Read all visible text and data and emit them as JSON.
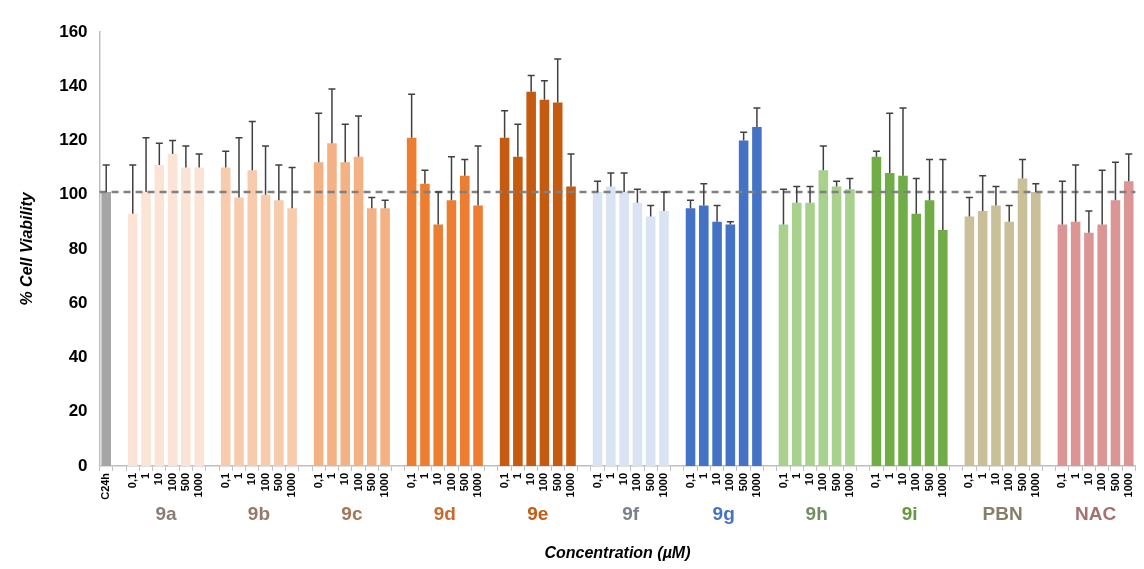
{
  "chart_data": {
    "type": "bar",
    "categories": [
      "C24h",
      null,
      "0,1",
      "1",
      "10",
      "100",
      "500",
      "1000",
      null,
      "0,1",
      "1",
      "10",
      "100",
      "500",
      "1000",
      null,
      "0,1",
      "1",
      "10",
      "100",
      "500",
      "1000",
      null,
      "0,1",
      "1",
      "10",
      "100",
      "500",
      "1000",
      null,
      "0,1",
      "1",
      "10",
      "100",
      "500",
      "1000",
      null,
      "0,1",
      "1",
      "10",
      "100",
      "500",
      "1000",
      null,
      "0,1",
      "1",
      "10",
      "100",
      "500",
      "1000",
      null,
      "0,1",
      "1",
      "10",
      "100",
      "500",
      "1000",
      null,
      "0,1",
      "1",
      "10",
      "100",
      "500",
      "1000",
      null,
      "0,1",
      "1",
      "10",
      "100",
      "500",
      "1000",
      null,
      "0,1",
      "1",
      "10",
      "100",
      "500",
      "1000"
    ],
    "series": [
      {
        "color": "#a6a6a6",
        "values": [
          101,
          null,
          null,
          null,
          null,
          null,
          null,
          null,
          null,
          null,
          null,
          null,
          null,
          null,
          null,
          null,
          null,
          null,
          null,
          null,
          null,
          null,
          null,
          null,
          null,
          null,
          null,
          null,
          null,
          null,
          null,
          null,
          null,
          null,
          null,
          null,
          null,
          null,
          null,
          null,
          null,
          null,
          null,
          null,
          null,
          null,
          null,
          null,
          null,
          null,
          null,
          null,
          null,
          null,
          null,
          null,
          null,
          null,
          null,
          null,
          null,
          null,
          null,
          null,
          null,
          null,
          null,
          null,
          null,
          null,
          null,
          null,
          null,
          null,
          null,
          null,
          null,
          null
        ],
        "errors": [
          [
            101,
            111
          ],
          null,
          null,
          null,
          null,
          null,
          null,
          null,
          null,
          null,
          null,
          null,
          null,
          null,
          null,
          null,
          null,
          null,
          null,
          null,
          null,
          null,
          null,
          null,
          null,
          null,
          null,
          null,
          null,
          null,
          null,
          null,
          null,
          null,
          null,
          null,
          null,
          null,
          null,
          null,
          null,
          null,
          null,
          null,
          null,
          null,
          null,
          null,
          null,
          null,
          null,
          null,
          null,
          null,
          null,
          null,
          null,
          null,
          null,
          null,
          null,
          null,
          null,
          null,
          null,
          null,
          null,
          null,
          null,
          null,
          null,
          null,
          null,
          null,
          null,
          null,
          null,
          null
        ]
      },
      {
        "name": "9a",
        "color": "#fbe3d6",
        "values": [
          null,
          null,
          93,
          101,
          111,
          115,
          110,
          110,
          null,
          null,
          null,
          null,
          null,
          null,
          null,
          null,
          null,
          null,
          null,
          null,
          null,
          null,
          null,
          null,
          null,
          null,
          null,
          null,
          null,
          null,
          null,
          null,
          null,
          null,
          null,
          null,
          null,
          null,
          null,
          null,
          null,
          null,
          null,
          null,
          null,
          null,
          null,
          null,
          null,
          null,
          null,
          null,
          null,
          null,
          null,
          null,
          null,
          null,
          null,
          null,
          null,
          null,
          null,
          null,
          null,
          null,
          null,
          null,
          null,
          null,
          null,
          null,
          null,
          null,
          null,
          null,
          null,
          null
        ],
        "errors": [
          null,
          null,
          [
            93,
            111
          ],
          [
            101,
            121
          ],
          [
            111,
            119
          ],
          [
            115,
            120
          ],
          [
            110,
            118
          ],
          [
            110,
            115
          ],
          null,
          null,
          null,
          null,
          null,
          null,
          null,
          null,
          null,
          null,
          null,
          null,
          null,
          null,
          null,
          null,
          null,
          null,
          null,
          null,
          null,
          null,
          null,
          null,
          null,
          null,
          null,
          null,
          null,
          null,
          null,
          null,
          null,
          null,
          null,
          null,
          null,
          null,
          null,
          null,
          null,
          null,
          null,
          null,
          null,
          null,
          null,
          null,
          null,
          null,
          null,
          null,
          null,
          null,
          null,
          null,
          null,
          null,
          null,
          null,
          null,
          null,
          null,
          null,
          null,
          null,
          null,
          null,
          null,
          null
        ]
      },
      {
        "name": "9b",
        "color": "#f8cbad",
        "values": [
          null,
          null,
          null,
          null,
          null,
          null,
          null,
          null,
          null,
          110,
          99,
          109,
          100,
          98,
          95,
          null,
          null,
          null,
          null,
          null,
          null,
          null,
          null,
          null,
          null,
          null,
          null,
          null,
          null,
          null,
          null,
          null,
          null,
          null,
          null,
          null,
          null,
          null,
          null,
          null,
          null,
          null,
          null,
          null,
          null,
          null,
          null,
          null,
          null,
          null,
          null,
          null,
          null,
          null,
          null,
          null,
          null,
          null,
          null,
          null,
          null,
          null,
          null,
          null,
          null,
          null,
          null,
          null,
          null,
          null,
          null,
          null,
          null,
          null,
          null,
          null,
          null,
          null
        ],
        "errors": [
          null,
          null,
          null,
          null,
          null,
          null,
          null,
          null,
          null,
          [
            110,
            116
          ],
          [
            99,
            121
          ],
          [
            109,
            127
          ],
          [
            100,
            118
          ],
          [
            98,
            111
          ],
          [
            95,
            110
          ],
          null,
          null,
          null,
          null,
          null,
          null,
          null,
          null,
          null,
          null,
          null,
          null,
          null,
          null,
          null,
          null,
          null,
          null,
          null,
          null,
          null,
          null,
          null,
          null,
          null,
          null,
          null,
          null,
          null,
          null,
          null,
          null,
          null,
          null,
          null,
          null,
          null,
          null,
          null,
          null,
          null,
          null,
          null,
          null,
          null,
          null,
          null,
          null,
          null,
          null,
          null,
          null,
          null,
          null,
          null,
          null,
          null,
          null,
          null,
          null,
          null,
          null,
          null
        ]
      },
      {
        "name": "9c",
        "color": "#f4b183",
        "values": [
          null,
          null,
          null,
          null,
          null,
          null,
          null,
          null,
          null,
          null,
          null,
          null,
          null,
          null,
          null,
          null,
          112,
          119,
          112,
          114,
          95,
          95,
          null,
          null,
          null,
          null,
          null,
          null,
          null,
          null,
          null,
          null,
          null,
          null,
          null,
          null,
          null,
          null,
          null,
          null,
          null,
          null,
          null,
          null,
          null,
          null,
          null,
          null,
          null,
          null,
          null,
          null,
          null,
          null,
          null,
          null,
          null,
          null,
          null,
          null,
          null,
          null,
          null,
          null,
          null,
          null,
          null,
          null,
          null,
          null,
          null,
          null,
          null,
          null,
          null,
          null,
          null,
          null
        ],
        "errors": [
          null,
          null,
          null,
          null,
          null,
          null,
          null,
          null,
          null,
          null,
          null,
          null,
          null,
          null,
          null,
          null,
          [
            112,
            130
          ],
          [
            119,
            139
          ],
          [
            112,
            126
          ],
          [
            114,
            129
          ],
          [
            95,
            99
          ],
          [
            95,
            98
          ],
          null,
          null,
          null,
          null,
          null,
          null,
          null,
          null,
          null,
          null,
          null,
          null,
          null,
          null,
          null,
          null,
          null,
          null,
          null,
          null,
          null,
          null,
          null,
          null,
          null,
          null,
          null,
          null,
          null,
          null,
          null,
          null,
          null,
          null,
          null,
          null,
          null,
          null,
          null,
          null,
          null,
          null,
          null,
          null,
          null,
          null,
          null,
          null,
          null,
          null,
          null,
          null,
          null,
          null,
          null,
          null
        ]
      },
      {
        "name": "9d",
        "color": "#ed7d31",
        "values": [
          null,
          null,
          null,
          null,
          null,
          null,
          null,
          null,
          null,
          null,
          null,
          null,
          null,
          null,
          null,
          null,
          null,
          null,
          null,
          null,
          null,
          null,
          null,
          121,
          104,
          89,
          98,
          107,
          96,
          null,
          null,
          null,
          null,
          null,
          null,
          null,
          null,
          null,
          null,
          null,
          null,
          null,
          null,
          null,
          null,
          null,
          null,
          null,
          null,
          null,
          null,
          null,
          null,
          null,
          null,
          null,
          null,
          null,
          null,
          null,
          null,
          null,
          null,
          null,
          null,
          null,
          null,
          null,
          null,
          null,
          null,
          null,
          null,
          null,
          null,
          null,
          null,
          null
        ],
        "errors": [
          null,
          null,
          null,
          null,
          null,
          null,
          null,
          null,
          null,
          null,
          null,
          null,
          null,
          null,
          null,
          null,
          null,
          null,
          null,
          null,
          null,
          null,
          null,
          [
            121,
            137
          ],
          [
            104,
            109
          ],
          [
            89,
            101
          ],
          [
            98,
            114
          ],
          [
            107,
            113
          ],
          [
            96,
            118
          ],
          null,
          null,
          null,
          null,
          null,
          null,
          null,
          null,
          null,
          null,
          null,
          null,
          null,
          null,
          null,
          null,
          null,
          null,
          null,
          null,
          null,
          null,
          null,
          null,
          null,
          null,
          null,
          null,
          null,
          null,
          null,
          null,
          null,
          null,
          null,
          null,
          null,
          null,
          null,
          null,
          null,
          null,
          null,
          null,
          null,
          null,
          null,
          null,
          null
        ]
      },
      {
        "name": "9e",
        "color": "#c55a11",
        "values": [
          null,
          null,
          null,
          null,
          null,
          null,
          null,
          null,
          null,
          null,
          null,
          null,
          null,
          null,
          null,
          null,
          null,
          null,
          null,
          null,
          null,
          null,
          null,
          null,
          null,
          null,
          null,
          null,
          null,
          null,
          121,
          114,
          138,
          135,
          134,
          103,
          null,
          null,
          null,
          null,
          null,
          null,
          null,
          null,
          null,
          null,
          null,
          null,
          null,
          null,
          null,
          null,
          null,
          null,
          null,
          null,
          null,
          null,
          null,
          null,
          null,
          null,
          null,
          null,
          null,
          null,
          null,
          null,
          null,
          null,
          null,
          null,
          null,
          null,
          null,
          null,
          null,
          null
        ],
        "errors": [
          null,
          null,
          null,
          null,
          null,
          null,
          null,
          null,
          null,
          null,
          null,
          null,
          null,
          null,
          null,
          null,
          null,
          null,
          null,
          null,
          null,
          null,
          null,
          null,
          null,
          null,
          null,
          null,
          null,
          null,
          [
            121,
            131
          ],
          [
            114,
            126
          ],
          [
            138,
            144
          ],
          [
            135,
            142
          ],
          [
            134,
            150
          ],
          [
            103,
            115
          ],
          null,
          null,
          null,
          null,
          null,
          null,
          null,
          null,
          null,
          null,
          null,
          null,
          null,
          null,
          null,
          null,
          null,
          null,
          null,
          null,
          null,
          null,
          null,
          null,
          null,
          null,
          null,
          null,
          null,
          null,
          null,
          null,
          null,
          null,
          null,
          null,
          null,
          null,
          null,
          null,
          null,
          null
        ]
      },
      {
        "name": "9f",
        "color": "#dae3f3",
        "values": [
          null,
          null,
          null,
          null,
          null,
          null,
          null,
          null,
          null,
          null,
          null,
          null,
          null,
          null,
          null,
          null,
          null,
          null,
          null,
          null,
          null,
          null,
          null,
          null,
          null,
          null,
          null,
          null,
          null,
          null,
          null,
          null,
          null,
          null,
          null,
          null,
          null,
          101,
          103,
          101,
          97,
          92,
          94,
          null,
          null,
          null,
          null,
          null,
          null,
          null,
          null,
          null,
          null,
          null,
          null,
          null,
          null,
          null,
          null,
          null,
          null,
          null,
          null,
          null,
          null,
          null,
          null,
          null,
          null,
          null,
          null,
          null,
          null,
          null,
          null,
          null,
          null,
          null
        ],
        "errors": [
          null,
          null,
          null,
          null,
          null,
          null,
          null,
          null,
          null,
          null,
          null,
          null,
          null,
          null,
          null,
          null,
          null,
          null,
          null,
          null,
          null,
          null,
          null,
          null,
          null,
          null,
          null,
          null,
          null,
          null,
          null,
          null,
          null,
          null,
          null,
          null,
          null,
          [
            101,
            105
          ],
          [
            103,
            108
          ],
          [
            101,
            108
          ],
          [
            97,
            102
          ],
          [
            92,
            96
          ],
          [
            94,
            101
          ],
          null,
          null,
          null,
          null,
          null,
          null,
          null,
          null,
          null,
          null,
          null,
          null,
          null,
          null,
          null,
          null,
          null,
          null,
          null,
          null,
          null,
          null,
          null,
          null,
          null,
          null,
          null,
          null,
          null,
          null,
          null,
          null,
          null,
          null,
          null
        ]
      },
      {
        "name": "9g",
        "color": "#4472c4",
        "values": [
          null,
          null,
          null,
          null,
          null,
          null,
          null,
          null,
          null,
          null,
          null,
          null,
          null,
          null,
          null,
          null,
          null,
          null,
          null,
          null,
          null,
          null,
          null,
          null,
          null,
          null,
          null,
          null,
          null,
          null,
          null,
          null,
          null,
          null,
          null,
          null,
          null,
          null,
          null,
          null,
          null,
          null,
          null,
          null,
          95,
          96,
          90,
          89,
          120,
          125,
          null,
          null,
          null,
          null,
          null,
          null,
          null,
          null,
          null,
          null,
          null,
          null,
          null,
          null,
          null,
          null,
          null,
          null,
          null,
          null,
          null,
          null,
          null,
          null,
          null,
          null,
          null,
          null
        ],
        "errors": [
          null,
          null,
          null,
          null,
          null,
          null,
          null,
          null,
          null,
          null,
          null,
          null,
          null,
          null,
          null,
          null,
          null,
          null,
          null,
          null,
          null,
          null,
          null,
          null,
          null,
          null,
          null,
          null,
          null,
          null,
          null,
          null,
          null,
          null,
          null,
          null,
          null,
          null,
          null,
          null,
          null,
          null,
          null,
          null,
          [
            95,
            98
          ],
          [
            96,
            104
          ],
          [
            90,
            96
          ],
          [
            89,
            90
          ],
          [
            120,
            123
          ],
          [
            125,
            132
          ],
          null,
          null,
          null,
          null,
          null,
          null,
          null,
          null,
          null,
          null,
          null,
          null,
          null,
          null,
          null,
          null,
          null,
          null,
          null,
          null,
          null,
          null,
          null,
          null,
          null,
          null,
          null,
          null
        ]
      },
      {
        "name": "9h",
        "color": "#a9d18e",
        "values": [
          null,
          null,
          null,
          null,
          null,
          null,
          null,
          null,
          null,
          null,
          null,
          null,
          null,
          null,
          null,
          null,
          null,
          null,
          null,
          null,
          null,
          null,
          null,
          null,
          null,
          null,
          null,
          null,
          null,
          null,
          null,
          null,
          null,
          null,
          null,
          null,
          null,
          null,
          null,
          null,
          null,
          null,
          null,
          null,
          null,
          null,
          null,
          null,
          null,
          null,
          null,
          89,
          97,
          97,
          109,
          103,
          102,
          null,
          null,
          null,
          null,
          null,
          null,
          null,
          null,
          null,
          null,
          null,
          null,
          null,
          null,
          null,
          null,
          null,
          null,
          null,
          null,
          null
        ],
        "errors": [
          null,
          null,
          null,
          null,
          null,
          null,
          null,
          null,
          null,
          null,
          null,
          null,
          null,
          null,
          null,
          null,
          null,
          null,
          null,
          null,
          null,
          null,
          null,
          null,
          null,
          null,
          null,
          null,
          null,
          null,
          null,
          null,
          null,
          null,
          null,
          null,
          null,
          null,
          null,
          null,
          null,
          null,
          null,
          null,
          null,
          null,
          null,
          null,
          null,
          null,
          null,
          [
            89,
            102
          ],
          [
            97,
            103
          ],
          [
            97,
            103
          ],
          [
            109,
            118
          ],
          [
            103,
            105
          ],
          [
            102,
            106
          ],
          null,
          null,
          null,
          null,
          null,
          null,
          null,
          null,
          null,
          null,
          null,
          null,
          null,
          null,
          null,
          null,
          null,
          null,
          null,
          null,
          null
        ]
      },
      {
        "name": "9i",
        "color": "#70ad47",
        "values": [
          null,
          null,
          null,
          null,
          null,
          null,
          null,
          null,
          null,
          null,
          null,
          null,
          null,
          null,
          null,
          null,
          null,
          null,
          null,
          null,
          null,
          null,
          null,
          null,
          null,
          null,
          null,
          null,
          null,
          null,
          null,
          null,
          null,
          null,
          null,
          null,
          null,
          null,
          null,
          null,
          null,
          null,
          null,
          null,
          null,
          null,
          null,
          null,
          null,
          null,
          null,
          null,
          null,
          null,
          null,
          null,
          null,
          null,
          114,
          108,
          107,
          93,
          98,
          87,
          null,
          null,
          null,
          null,
          null,
          null,
          null,
          null,
          null,
          null,
          null,
          null,
          null,
          null
        ],
        "errors": [
          null,
          null,
          null,
          null,
          null,
          null,
          null,
          null,
          null,
          null,
          null,
          null,
          null,
          null,
          null,
          null,
          null,
          null,
          null,
          null,
          null,
          null,
          null,
          null,
          null,
          null,
          null,
          null,
          null,
          null,
          null,
          null,
          null,
          null,
          null,
          null,
          null,
          null,
          null,
          null,
          null,
          null,
          null,
          null,
          null,
          null,
          null,
          null,
          null,
          null,
          null,
          null,
          null,
          null,
          null,
          null,
          null,
          null,
          [
            114,
            116
          ],
          [
            108,
            130
          ],
          [
            107,
            132
          ],
          [
            93,
            106
          ],
          [
            98,
            113
          ],
          [
            87,
            113
          ],
          null,
          null,
          null,
          null,
          null,
          null,
          null,
          null,
          null,
          null,
          null,
          null,
          null,
          null
        ]
      },
      {
        "name": "PBN",
        "color": "#c9bf98",
        "values": [
          null,
          null,
          null,
          null,
          null,
          null,
          null,
          null,
          null,
          null,
          null,
          null,
          null,
          null,
          null,
          null,
          null,
          null,
          null,
          null,
          null,
          null,
          null,
          null,
          null,
          null,
          null,
          null,
          null,
          null,
          null,
          null,
          null,
          null,
          null,
          null,
          null,
          null,
          null,
          null,
          null,
          null,
          null,
          null,
          null,
          null,
          null,
          null,
          null,
          null,
          null,
          null,
          null,
          null,
          null,
          null,
          null,
          null,
          null,
          null,
          null,
          null,
          null,
          null,
          null,
          92,
          94,
          96,
          90,
          106,
          101,
          null,
          null,
          null,
          null,
          null,
          null,
          null
        ],
        "errors": [
          null,
          null,
          null,
          null,
          null,
          null,
          null,
          null,
          null,
          null,
          null,
          null,
          null,
          null,
          null,
          null,
          null,
          null,
          null,
          null,
          null,
          null,
          null,
          null,
          null,
          null,
          null,
          null,
          null,
          null,
          null,
          null,
          null,
          null,
          null,
          null,
          null,
          null,
          null,
          null,
          null,
          null,
          null,
          null,
          null,
          null,
          null,
          null,
          null,
          null,
          null,
          null,
          null,
          null,
          null,
          null,
          null,
          null,
          null,
          null,
          null,
          null,
          null,
          null,
          null,
          [
            92,
            99
          ],
          [
            94,
            107
          ],
          [
            96,
            103
          ],
          [
            90,
            96
          ],
          [
            106,
            113
          ],
          [
            101,
            104
          ],
          null,
          null,
          null,
          null,
          null,
          null,
          null
        ]
      },
      {
        "name": "NAC",
        "color": "#dc9595",
        "values": [
          null,
          null,
          null,
          null,
          null,
          null,
          null,
          null,
          null,
          null,
          null,
          null,
          null,
          null,
          null,
          null,
          null,
          null,
          null,
          null,
          null,
          null,
          null,
          null,
          null,
          null,
          null,
          null,
          null,
          null,
          null,
          null,
          null,
          null,
          null,
          null,
          null,
          null,
          null,
          null,
          null,
          null,
          null,
          null,
          null,
          null,
          null,
          null,
          null,
          null,
          null,
          null,
          null,
          null,
          null,
          null,
          null,
          null,
          null,
          null,
          null,
          null,
          null,
          null,
          null,
          null,
          null,
          null,
          null,
          null,
          null,
          null,
          89,
          90,
          86,
          89,
          98,
          105
        ],
        "errors": [
          null,
          null,
          null,
          null,
          null,
          null,
          null,
          null,
          null,
          null,
          null,
          null,
          null,
          null,
          null,
          null,
          null,
          null,
          null,
          null,
          null,
          null,
          null,
          null,
          null,
          null,
          null,
          null,
          null,
          null,
          null,
          null,
          null,
          null,
          null,
          null,
          null,
          null,
          null,
          null,
          null,
          null,
          null,
          null,
          null,
          null,
          null,
          null,
          null,
          null,
          null,
          null,
          null,
          null,
          null,
          null,
          null,
          null,
          null,
          null,
          null,
          null,
          null,
          null,
          null,
          null,
          null,
          null,
          null,
          null,
          null,
          null,
          [
            89,
            105
          ],
          [
            90,
            111
          ],
          [
            86,
            94
          ],
          [
            89,
            109
          ],
          [
            98,
            112
          ],
          [
            105,
            115
          ]
        ]
      }
    ],
    "xlabel": "Concentration (µM)",
    "ylabel": "% Cell Viability",
    "ylim": [
      0,
      160
    ],
    "yticks": [
      0,
      20,
      40,
      60,
      80,
      100,
      120,
      140,
      160
    ],
    "ref_lines": [
      {
        "axis": "y",
        "value": 101,
        "color": "#808080",
        "line_style": "dashed"
      }
    ],
    "legend": false
  }
}
